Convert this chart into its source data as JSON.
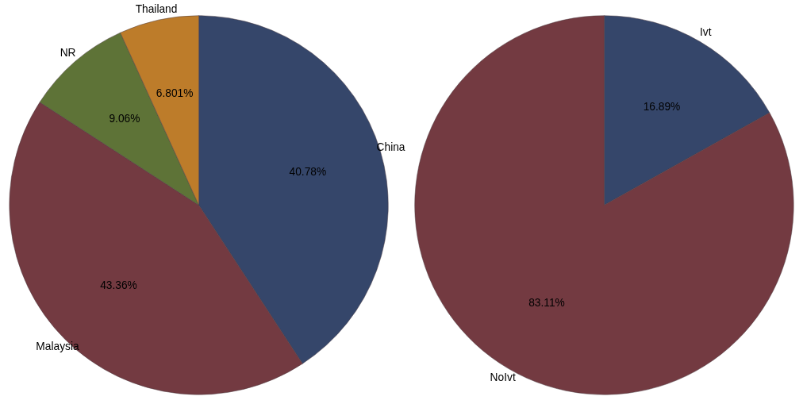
{
  "chart_data": [
    {
      "type": "pie",
      "categories": [
        "China",
        "Malaysia",
        "NR",
        "Thailand"
      ],
      "values": [
        40.78,
        43.36,
        9.06,
        6.801
      ],
      "colors": [
        "#35466a",
        "#733a41",
        "#5e7337",
        "#bd7c2a"
      ],
      "value_labels": [
        "40.78%",
        "43.36%",
        "9.06%",
        "6.801%"
      ]
    },
    {
      "type": "pie",
      "categories": [
        "Ivt",
        "NoIvt"
      ],
      "values": [
        16.89,
        83.11
      ],
      "colors": [
        "#35466a",
        "#733a41"
      ],
      "value_labels": [
        "16.89%",
        "83.11%"
      ]
    }
  ]
}
